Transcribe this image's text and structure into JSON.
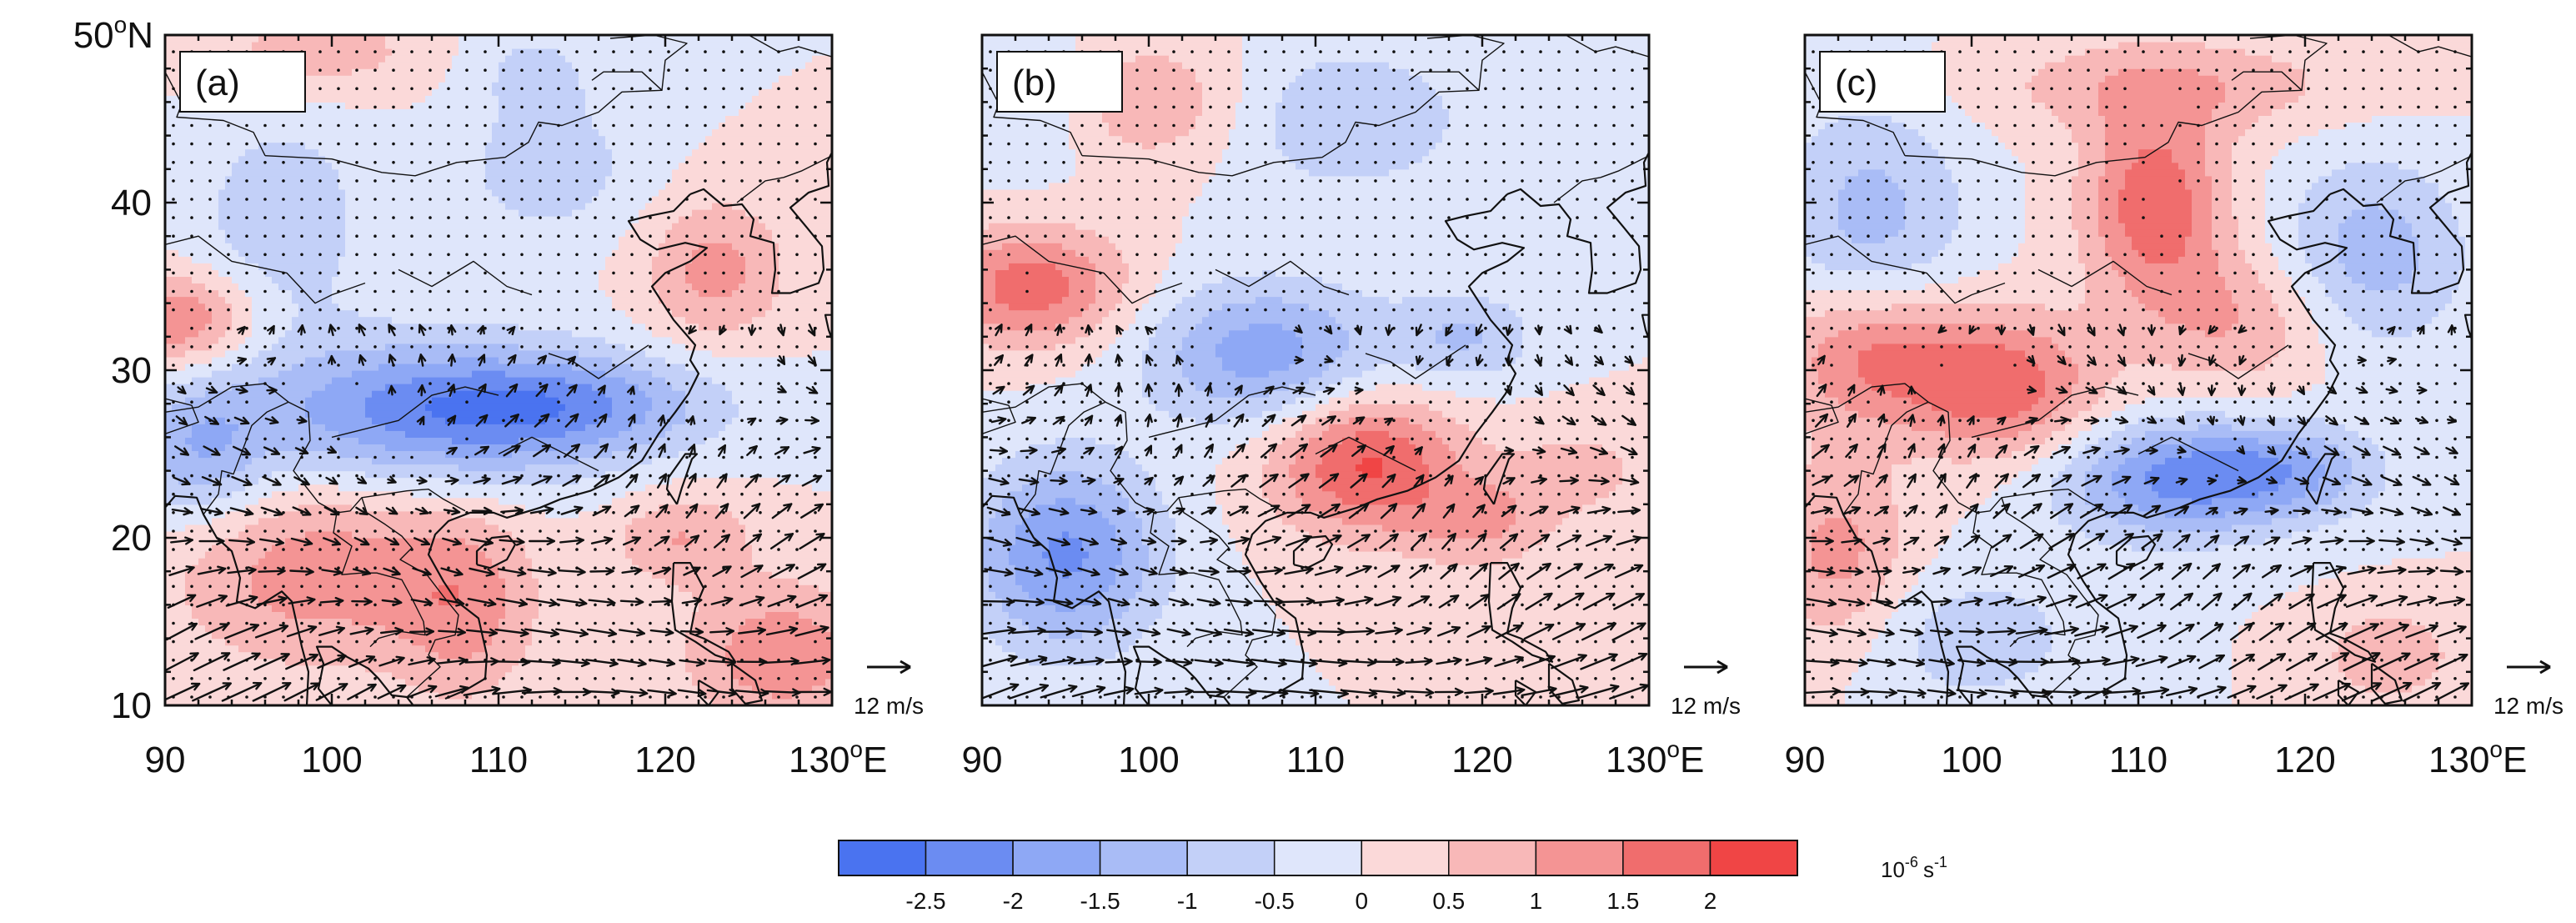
{
  "figure": {
    "title": ""
  },
  "panels": [
    {
      "id": "a",
      "label": "(a)"
    },
    {
      "id": "b",
      "label": "(b)"
    },
    {
      "id": "c",
      "label": "(c)"
    }
  ],
  "axes": {
    "x_ticks": [
      "90",
      "100",
      "110",
      "120"
    ],
    "x_last_tick": "130",
    "x_suffix": "E",
    "degree": "o",
    "y_ticks": [
      "10",
      "20",
      "30",
      "40"
    ],
    "y_top_tick": "50",
    "y_suffix": "N",
    "lon_range": [
      90,
      130
    ],
    "lat_range": [
      10,
      50
    ]
  },
  "vector_ref": {
    "label": "12 m/s",
    "speed": 12
  },
  "colorbar": {
    "tick_labels": [
      "-2.5",
      "-2",
      "-1.5",
      "-1",
      "-0.5",
      "0",
      "0.5",
      "1",
      "1.5",
      "2"
    ],
    "colors": [
      "#4a73f0",
      "#6b8cf2",
      "#8ea8f5",
      "#a9bcf6",
      "#c3d0f8",
      "#dfe6fb",
      "#fbd9d9",
      "#f8b8b8",
      "#f49494",
      "#f06d6d",
      "#f04545"
    ],
    "unit_base": "10",
    "unit_exp": "-6",
    "unit_s": "s",
    "unit_exp2": "-1"
  },
  "chart_data": {
    "type": "heatmap",
    "description_variable": "divergence/vorticity anomaly field with wind vectors and stippling",
    "units": "10^-6 s^-1",
    "lon_range": [
      90,
      130
    ],
    "lat_range": [
      10,
      50
    ],
    "levels": [
      -2.5,
      -2,
      -1.5,
      -1,
      -0.5,
      0,
      0.5,
      1,
      1.5,
      2
    ],
    "panels": [
      {
        "label": "(a)",
        "features": [
          {
            "lon": 106,
            "lat": 27.5,
            "value": -2.2,
            "rlon": 8,
            "rlat": 3
          },
          {
            "lon": 115,
            "lat": 28,
            "value": -1.2,
            "rlon": 6,
            "rlat": 2
          },
          {
            "lon": 92,
            "lat": 25,
            "value": -1.3,
            "rlon": 3,
            "rlat": 3
          },
          {
            "lon": 97,
            "lat": 39,
            "value": -0.8,
            "rlon": 4,
            "rlat": 5
          },
          {
            "lon": 113,
            "lat": 42,
            "value": -0.8,
            "rlon": 4,
            "rlat": 3
          },
          {
            "lon": 112,
            "lat": 48,
            "value": -0.6,
            "rlon": 3,
            "rlat": 2
          },
          {
            "lon": 91,
            "lat": 33,
            "value": 1.6,
            "rlon": 3,
            "rlat": 2
          },
          {
            "lon": 123,
            "lat": 36,
            "value": 1.2,
            "rlon": 3,
            "rlat": 3
          },
          {
            "lon": 99,
            "lat": 18,
            "value": 1.3,
            "rlon": 6,
            "rlat": 4
          },
          {
            "lon": 108,
            "lat": 16,
            "value": 1.1,
            "rlon": 3,
            "rlat": 4
          },
          {
            "lon": 127,
            "lat": 13,
            "value": 1.4,
            "rlon": 4,
            "rlat": 3
          },
          {
            "lon": 121,
            "lat": 20,
            "value": 1.0,
            "rlon": 3,
            "rlat": 2
          },
          {
            "lon": 99,
            "lat": 49,
            "value": 0.8,
            "rlon": 5,
            "rlat": 2
          }
        ]
      },
      {
        "label": "(b)",
        "features": [
          {
            "lon": 107,
            "lat": 31,
            "value": -1.8,
            "rlon": 5,
            "rlat": 3
          },
          {
            "lon": 119,
            "lat": 32,
            "value": -1.0,
            "rlon": 3,
            "rlat": 2
          },
          {
            "lon": 95,
            "lat": 19,
            "value": -2.1,
            "rlon": 4,
            "rlat": 4
          },
          {
            "lon": 112,
            "lat": 45,
            "value": -1.0,
            "rlon": 5,
            "rlat": 3
          },
          {
            "lon": 93,
            "lat": 46,
            "value": -0.6,
            "rlon": 3,
            "rlat": 3
          },
          {
            "lon": 93,
            "lat": 35,
            "value": 1.8,
            "rlon": 4,
            "rlat": 2.5
          },
          {
            "lon": 113,
            "lat": 24.5,
            "value": 2.1,
            "rlon": 4,
            "rlat": 3
          },
          {
            "lon": 120,
            "lat": 21,
            "value": 1.0,
            "rlon": 3,
            "rlat": 2
          },
          {
            "lon": 100,
            "lat": 46,
            "value": 1.0,
            "rlon": 4,
            "rlat": 2.5
          },
          {
            "lon": 126,
            "lat": 24,
            "value": 0.7,
            "rlon": 3,
            "rlat": 2
          }
        ]
      },
      {
        "label": "(c)",
        "features": [
          {
            "lon": 112,
            "lat": 23.5,
            "value": -2.0,
            "rlon": 5,
            "rlat": 2.5
          },
          {
            "lon": 119,
            "lat": 24,
            "value": -1.3,
            "rlon": 4,
            "rlat": 2
          },
          {
            "lon": 124,
            "lat": 37,
            "value": -1.3,
            "rlon": 4,
            "rlat": 4
          },
          {
            "lon": 94,
            "lat": 39,
            "value": -1.2,
            "rlon": 4,
            "rlat": 5
          },
          {
            "lon": 100,
            "lat": 14,
            "value": -0.8,
            "rlon": 5,
            "rlat": 3
          },
          {
            "lon": 94,
            "lat": 31,
            "value": 1.7,
            "rlon": 4,
            "rlat": 3
          },
          {
            "lon": 102,
            "lat": 29,
            "value": 1.8,
            "rlon": 4,
            "rlat": 3
          },
          {
            "lon": 111,
            "lat": 40,
            "value": 1.9,
            "rlon": 3,
            "rlat": 4
          },
          {
            "lon": 116,
            "lat": 33,
            "value": 1.0,
            "rlon": 4,
            "rlat": 3
          },
          {
            "lon": 112,
            "lat": 47,
            "value": 0.9,
            "rlon": 8,
            "rlat": 2
          },
          {
            "lon": 92,
            "lat": 19,
            "value": 1.2,
            "rlon": 3,
            "rlat": 4
          },
          {
            "lon": 125,
            "lat": 13,
            "value": 0.9,
            "rlon": 3,
            "rlat": 2
          }
        ]
      }
    ]
  }
}
